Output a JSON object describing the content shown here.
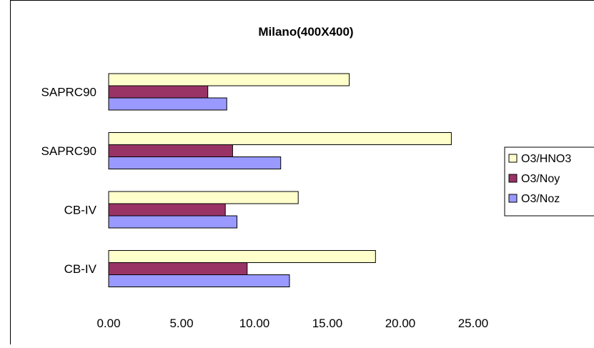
{
  "chart_data": {
    "type": "bar",
    "orientation": "horizontal",
    "title": "Milano(400X400)",
    "categories": [
      "SAPRC90",
      "SAPRC90",
      "CB-IV",
      "CB-IV"
    ],
    "series": [
      {
        "name": "O3/HNO3",
        "color": "#FFFFCC",
        "values": [
          16.5,
          23.5,
          13.0,
          18.3
        ]
      },
      {
        "name": "O3/Noy",
        "color": "#993366",
        "values": [
          6.8,
          8.5,
          8.0,
          9.5
        ]
      },
      {
        "name": "O3/Noz",
        "color": "#9999FF",
        "values": [
          8.1,
          11.8,
          8.8,
          12.4
        ]
      }
    ],
    "xlim": [
      0,
      25
    ],
    "xticks": [
      "0.00",
      "5.00",
      "10.00",
      "15.00",
      "20.00",
      "25.00"
    ],
    "xlabel": "",
    "ylabel": "",
    "grid": false,
    "legend_position": "right"
  }
}
